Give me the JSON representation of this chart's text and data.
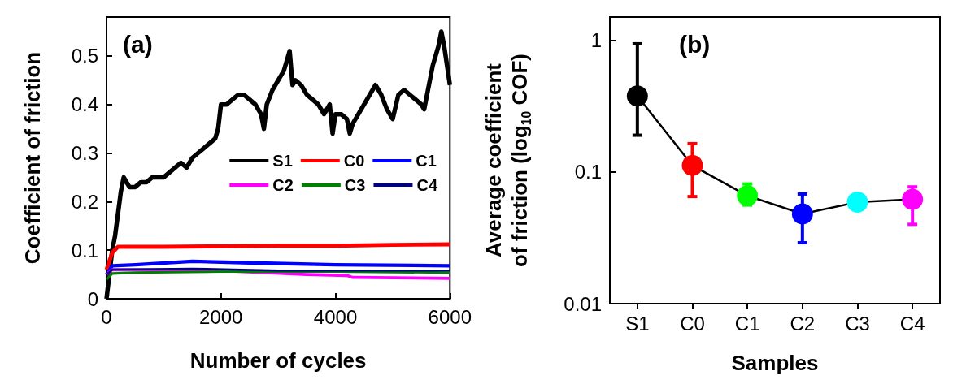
{
  "chart_data": [
    {
      "type": "line",
      "xlabel": "Number of cycles",
      "ylabel": "Coefficient of friction",
      "annotations": [
        "(a)"
      ],
      "xlim": [
        0,
        6000
      ],
      "ylim": [
        0,
        0.58
      ],
      "xticks": [
        0,
        2000,
        4000,
        6000
      ],
      "yticks": [
        0,
        0.1,
        0.2,
        0.3,
        0.4,
        0.5
      ],
      "grid": false,
      "legend": "right",
      "marker": "none",
      "line_style": "solid",
      "series": [
        {
          "name": "S1",
          "color": "#000000",
          "x": [
            0,
            100,
            150,
            250,
            300,
            400,
            500,
            600,
            700,
            800,
            900,
            1000,
            1100,
            1200,
            1300,
            1400,
            1500,
            1600,
            1700,
            1800,
            1900,
            1950,
            2000,
            2100,
            2200,
            2300,
            2400,
            2500,
            2600,
            2700,
            2750,
            2800,
            2900,
            3000,
            3100,
            3200,
            3250,
            3300,
            3400,
            3500,
            3600,
            3700,
            3800,
            3900,
            3950,
            4000,
            4100,
            4200,
            4250,
            4300,
            4400,
            4500,
            4600,
            4700,
            4800,
            4900,
            5000,
            5100,
            5200,
            5300,
            5400,
            5500,
            5550,
            5600,
            5700,
            5800,
            5850,
            5900,
            6000
          ],
          "values": [
            0,
            0.1,
            0.13,
            0.22,
            0.25,
            0.23,
            0.23,
            0.24,
            0.24,
            0.25,
            0.25,
            0.25,
            0.26,
            0.27,
            0.28,
            0.27,
            0.29,
            0.3,
            0.31,
            0.32,
            0.33,
            0.35,
            0.4,
            0.4,
            0.41,
            0.42,
            0.42,
            0.41,
            0.4,
            0.38,
            0.35,
            0.4,
            0.43,
            0.45,
            0.47,
            0.51,
            0.44,
            0.45,
            0.44,
            0.42,
            0.41,
            0.4,
            0.38,
            0.4,
            0.34,
            0.38,
            0.38,
            0.37,
            0.34,
            0.36,
            0.38,
            0.4,
            0.42,
            0.44,
            0.42,
            0.39,
            0.37,
            0.42,
            0.43,
            0.42,
            0.41,
            0.4,
            0.39,
            0.42,
            0.48,
            0.52,
            0.55,
            0.52,
            0.44
          ]
        },
        {
          "name": "C0",
          "color": "#ff0000",
          "x": [
            0,
            100,
            200,
            1000,
            2000,
            3000,
            4000,
            5000,
            6000
          ],
          "values": [
            0.06,
            0.095,
            0.107,
            0.107,
            0.108,
            0.109,
            0.109,
            0.111,
            0.112
          ]
        },
        {
          "name": "C1",
          "color": "#0000ff",
          "x": [
            0,
            100,
            500,
            1500,
            2500,
            4000,
            6000
          ],
          "values": [
            0.05,
            0.068,
            0.07,
            0.077,
            0.074,
            0.07,
            0.068
          ]
        },
        {
          "name": "C2",
          "color": "#ff00ff",
          "x": [
            0,
            100,
            2000,
            3500,
            4200,
            4300,
            6000
          ],
          "values": [
            0.05,
            0.06,
            0.058,
            0.05,
            0.048,
            0.044,
            0.042
          ]
        },
        {
          "name": "C3",
          "color": "#008000",
          "x": [
            0,
            100,
            500,
            2000,
            4000,
            6000
          ],
          "values": [
            0.04,
            0.052,
            0.054,
            0.056,
            0.056,
            0.054
          ]
        },
        {
          "name": "C4",
          "color": "#000080",
          "x": [
            0,
            100,
            1500,
            3000,
            6000
          ],
          "values": [
            0.05,
            0.06,
            0.062,
            0.058,
            0.058
          ]
        }
      ]
    },
    {
      "type": "line",
      "xlabel": "Samples",
      "ylabel": "Average coefficient\nof friction (log$_{10}$ COF)",
      "annotations": [
        "(b)"
      ],
      "categories": [
        "S1",
        "C0",
        "C1",
        "C2",
        "C3",
        "C4"
      ],
      "log": true,
      "ylim": [
        0.01,
        1.5
      ],
      "yticks": [
        0.01,
        0.1,
        1
      ],
      "grid": false,
      "marker": "circle",
      "line_style": "solid",
      "series": [
        {
          "color": "#000000",
          "colors": [
            "#000000",
            "#ff0000",
            "#00ff00",
            "#0000ff",
            "#00ffff",
            "#ff00ff"
          ],
          "values": [
            0.377,
            0.112,
            0.066,
            0.048,
            0.059,
            0.062
          ],
          "errors": [
            [
              0.19,
              0.94
            ],
            [
              0.065,
              0.164
            ],
            [
              0.056,
              0.081
            ],
            [
              0.029,
              0.068
            ],
            null,
            [
              0.04,
              0.077
            ]
          ]
        }
      ]
    }
  ]
}
